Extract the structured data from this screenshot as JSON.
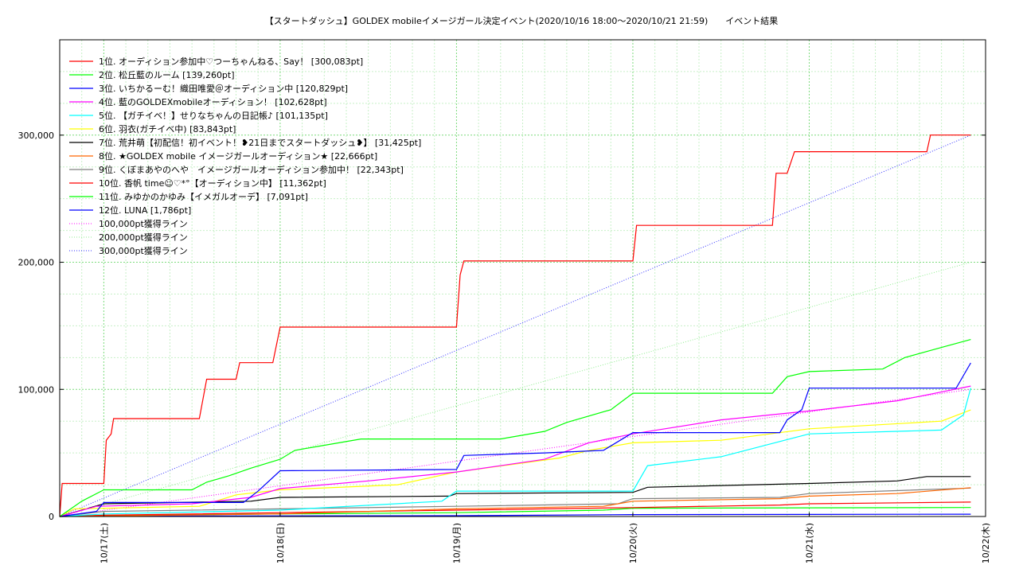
{
  "chart_data": {
    "type": "line",
    "title": "【スタートダッシュ】GOLDEX mobileイメージガール決定イベント(2020/10/16 18:00〜2020/10/21 21:59)　　イベント結果",
    "x_range": [
      "2020/10/16 18:00",
      "2020/10/22 00:00"
    ],
    "x_ticks": [
      {
        "t": "2020/10/17 00:00",
        "label": "10/17(土)"
      },
      {
        "t": "2020/10/18 00:00",
        "label": "10/18(日)"
      },
      {
        "t": "2020/10/19 00:00",
        "label": "10/19(月)"
      },
      {
        "t": "2020/10/20 00:00",
        "label": "10/20(火)"
      },
      {
        "t": "2020/10/21 00:00",
        "label": "10/21(水)"
      },
      {
        "t": "2020/10/22 00:00",
        "label": "10/22(木)"
      }
    ],
    "ylim": [
      0,
      375000
    ],
    "y_ticks": [
      {
        "v": 0,
        "label": "0"
      },
      {
        "v": 100000,
        "label": "100,000"
      },
      {
        "v": 200000,
        "label": "200,000"
      },
      {
        "v": 300000,
        "label": "300,000"
      }
    ],
    "grid": true,
    "legend_position": "top-left",
    "series": [
      {
        "name": "1位. オーディション参加中♡つーちゃんねる、Say！ [300,083pt]",
        "color": "#ff0000",
        "points": [
          [
            "2020/10/16 18:00",
            0
          ],
          [
            "2020/10/16 18:20",
            26000
          ],
          [
            "2020/10/17 00:00",
            26000
          ],
          [
            "2020/10/17 00:20",
            60000
          ],
          [
            "2020/10/17 01:00",
            65000
          ],
          [
            "2020/10/17 01:20",
            77000
          ],
          [
            "2020/10/17 13:00",
            77000
          ],
          [
            "2020/10/17 14:00",
            108000
          ],
          [
            "2020/10/17 18:00",
            108000
          ],
          [
            "2020/10/17 18:30",
            121000
          ],
          [
            "2020/10/17 23:00",
            121000
          ],
          [
            "2020/10/18 00:00",
            149000
          ],
          [
            "2020/10/19 00:00",
            149000
          ],
          [
            "2020/10/19 00:30",
            190000
          ],
          [
            "2020/10/19 01:00",
            201000
          ],
          [
            "2020/10/20 00:00",
            201000
          ],
          [
            "2020/10/20 00:30",
            229000
          ],
          [
            "2020/10/20 19:00",
            229000
          ],
          [
            "2020/10/20 19:30",
            270000
          ],
          [
            "2020/10/20 21:00",
            270000
          ],
          [
            "2020/10/20 22:00",
            287000
          ],
          [
            "2020/10/21 16:00",
            287000
          ],
          [
            "2020/10/21 16:30",
            300083
          ],
          [
            "2020/10/21 21:59",
            300083
          ]
        ]
      },
      {
        "name": "2位. 松丘藍のルーム [139,260pt]",
        "color": "#00ff00",
        "points": [
          [
            "2020/10/16 18:00",
            0
          ],
          [
            "2020/10/16 21:00",
            12000
          ],
          [
            "2020/10/17 00:00",
            21000
          ],
          [
            "2020/10/17 12:00",
            21000
          ],
          [
            "2020/10/17 14:00",
            27000
          ],
          [
            "2020/10/17 17:00",
            32000
          ],
          [
            "2020/10/17 20:00",
            38000
          ],
          [
            "2020/10/18 00:00",
            45000
          ],
          [
            "2020/10/18 02:00",
            52000
          ],
          [
            "2020/10/18 05:00",
            55000
          ],
          [
            "2020/10/18 11:00",
            61000
          ],
          [
            "2020/10/19 06:00",
            61000
          ],
          [
            "2020/10/19 12:00",
            67000
          ],
          [
            "2020/10/19 15:00",
            74000
          ],
          [
            "2020/10/19 21:00",
            84000
          ],
          [
            "2020/10/20 00:00",
            97000
          ],
          [
            "2020/10/20 19:00",
            97000
          ],
          [
            "2020/10/20 21:00",
            110000
          ],
          [
            "2020/10/21 00:00",
            114000
          ],
          [
            "2020/10/21 10:00",
            116000
          ],
          [
            "2020/10/21 13:00",
            125000
          ],
          [
            "2020/10/21 18:00",
            133000
          ],
          [
            "2020/10/21 21:59",
            139260
          ]
        ]
      },
      {
        "name": "3位. いちかるーむ！織田唯愛＠オーディション中 [120,829pt]",
        "color": "#0000ff",
        "points": [
          [
            "2020/10/16 18:00",
            0
          ],
          [
            "2020/10/16 23:00",
            4000
          ],
          [
            "2020/10/17 00:00",
            11000
          ],
          [
            "2020/10/17 19:00",
            11000
          ],
          [
            "2020/10/17 21:00",
            20000
          ],
          [
            "2020/10/18 00:00",
            36000
          ],
          [
            "2020/10/19 00:00",
            37000
          ],
          [
            "2020/10/19 01:00",
            48000
          ],
          [
            "2020/10/19 12:00",
            50000
          ],
          [
            "2020/10/19 20:00",
            52000
          ],
          [
            "2020/10/20 00:00",
            66000
          ],
          [
            "2020/10/20 20:00",
            66000
          ],
          [
            "2020/10/20 21:00",
            76000
          ],
          [
            "2020/10/20 23:00",
            84000
          ],
          [
            "2020/10/21 00:00",
            101000
          ],
          [
            "2020/10/21 20:00",
            101000
          ],
          [
            "2020/10/21 21:59",
            120829
          ]
        ]
      },
      {
        "name": "4位. 藍のGOLDEXmobileオーディション！ [102,628pt]",
        "color": "#ff00ff",
        "points": [
          [
            "2020/10/16 18:00",
            0
          ],
          [
            "2020/10/16 23:00",
            8000
          ],
          [
            "2020/10/17 12:00",
            10000
          ],
          [
            "2020/10/17 20:00",
            15000
          ],
          [
            "2020/10/18 00:00",
            22000
          ],
          [
            "2020/10/18 12:00",
            28000
          ],
          [
            "2020/10/19 00:00",
            35000
          ],
          [
            "2020/10/19 12:00",
            45000
          ],
          [
            "2020/10/19 18:00",
            58000
          ],
          [
            "2020/10/20 00:00",
            65000
          ],
          [
            "2020/10/20 12:00",
            76000
          ],
          [
            "2020/10/21 00:00",
            83000
          ],
          [
            "2020/10/21 12:00",
            91000
          ],
          [
            "2020/10/21 21:59",
            102628
          ]
        ]
      },
      {
        "name": "5位. 【ガチイベ！】せりなちゃんの日記帳♪ [101,135pt]",
        "color": "#00ffff",
        "points": [
          [
            "2020/10/16 18:00",
            0
          ],
          [
            "2020/10/17 00:00",
            2000
          ],
          [
            "2020/10/18 00:00",
            5000
          ],
          [
            "2020/10/18 22:00",
            12000
          ],
          [
            "2020/10/19 00:00",
            20000
          ],
          [
            "2020/10/20 00:00",
            20000
          ],
          [
            "2020/10/20 02:00",
            40000
          ],
          [
            "2020/10/20 12:00",
            47000
          ],
          [
            "2020/10/21 00:00",
            65000
          ],
          [
            "2020/10/21 18:00",
            68000
          ],
          [
            "2020/10/21 21:00",
            80000
          ],
          [
            "2020/10/21 21:59",
            101135
          ]
        ]
      },
      {
        "name": "6位. 羽衣(ガチイベ中) [83,843pt]",
        "color": "#ffff00",
        "points": [
          [
            "2020/10/16 18:00",
            0
          ],
          [
            "2020/10/16 20:00",
            6000
          ],
          [
            "2020/10/17 13:00",
            8000
          ],
          [
            "2020/10/17 18:00",
            17000
          ],
          [
            "2020/10/18 00:00",
            21000
          ],
          [
            "2020/10/18 16:00",
            25000
          ],
          [
            "2020/10/19 00:00",
            35000
          ],
          [
            "2020/10/19 14:00",
            46000
          ],
          [
            "2020/10/19 18:00",
            52000
          ],
          [
            "2020/10/20 00:00",
            58000
          ],
          [
            "2020/10/20 12:00",
            60000
          ],
          [
            "2020/10/21 00:00",
            69000
          ],
          [
            "2020/10/21 18:00",
            75000
          ],
          [
            "2020/10/21 21:59",
            83843
          ]
        ]
      },
      {
        "name": "7位. 荒井萌【初配信！初イベント！❥21日までスタートダッシュ❥】 [31,425pt]",
        "color": "#000000",
        "points": [
          [
            "2020/10/16 18:00",
            0
          ],
          [
            "2020/10/17 00:00",
            10000
          ],
          [
            "2020/10/17 20:00",
            12000
          ],
          [
            "2020/10/18 00:00",
            15000
          ],
          [
            "2020/10/18 23:00",
            16000
          ],
          [
            "2020/10/19 00:00",
            18000
          ],
          [
            "2020/10/20 00:00",
            19000
          ],
          [
            "2020/10/20 02:00",
            23000
          ],
          [
            "2020/10/21 00:00",
            26000
          ],
          [
            "2020/10/21 12:00",
            28000
          ],
          [
            "2020/10/21 16:00",
            31425
          ],
          [
            "2020/10/21 21:59",
            31425
          ]
        ]
      },
      {
        "name": "8位. ★GOLDEX mobile イメージガールオーディション★ [22,666pt]",
        "color": "#ff6600",
        "points": [
          [
            "2020/10/16 18:00",
            0
          ],
          [
            "2020/10/18 00:00",
            2000
          ],
          [
            "2020/10/18 12:00",
            4000
          ],
          [
            "2020/10/19 00:00",
            6000
          ],
          [
            "2020/10/19 20:00",
            8000
          ],
          [
            "2020/10/20 00:00",
            12000
          ],
          [
            "2020/10/20 20:00",
            14000
          ],
          [
            "2020/10/21 00:00",
            16000
          ],
          [
            "2020/10/21 12:00",
            18000
          ],
          [
            "2020/10/21 21:59",
            22666
          ]
        ]
      },
      {
        "name": "9位. くぼまあやのへや　イメージガールオーディション参加中！ [22,343pt]",
        "color": "#808080",
        "points": [
          [
            "2020/10/16 18:00",
            0
          ],
          [
            "2020/10/17 00:00",
            4000
          ],
          [
            "2020/10/18 00:00",
            6000
          ],
          [
            "2020/10/19 00:00",
            8000
          ],
          [
            "2020/10/19 22:00",
            10000
          ],
          [
            "2020/10/20 00:00",
            14000
          ],
          [
            "2020/10/20 20:00",
            15000
          ],
          [
            "2020/10/21 00:00",
            18000
          ],
          [
            "2020/10/21 21:59",
            22343
          ]
        ]
      },
      {
        "name": "10位. 香帆 time☺♡*°【オーディション中】 [11,362pt]",
        "color": "#ff0000",
        "points": [
          [
            "2020/10/16 18:00",
            0
          ],
          [
            "2020/10/17 00:00",
            1000
          ],
          [
            "2020/10/18 00:00",
            3000
          ],
          [
            "2020/10/19 00:00",
            5000
          ],
          [
            "2020/10/20 00:00",
            7000
          ],
          [
            "2020/10/20 20:00",
            9000
          ],
          [
            "2020/10/21 00:00",
            10000
          ],
          [
            "2020/10/21 21:59",
            11362
          ]
        ]
      },
      {
        "name": "11位. みゆかのかゆみ【イメガルオーデ】 [7,091pt]",
        "color": "#00ff00",
        "points": [
          [
            "2020/10/16 18:00",
            0
          ],
          [
            "2020/10/17 00:00",
            800
          ],
          [
            "2020/10/18 00:00",
            2000
          ],
          [
            "2020/10/19 00:00",
            3000
          ],
          [
            "2020/10/19 20:00",
            5000
          ],
          [
            "2020/10/20 00:00",
            6500
          ],
          [
            "2020/10/21 21:59",
            7091
          ]
        ]
      },
      {
        "name": "12位. LUNA [1,786pt]",
        "color": "#0000ff",
        "points": [
          [
            "2020/10/16 18:00",
            0
          ],
          [
            "2020/10/17 00:00",
            300
          ],
          [
            "2020/10/19 00:00",
            600
          ],
          [
            "2020/10/20 00:00",
            1500
          ],
          [
            "2020/10/21 21:59",
            1786
          ]
        ]
      }
    ],
    "reference_lines": [
      {
        "name": "100,000pt獲得ライン",
        "color": "#ff00ff",
        "end_value": 100000
      },
      {
        "name": "200,000pt獲得ライン",
        "color": "#90ee90",
        "end_value": 200000
      },
      {
        "name": "300,000pt獲得ライン",
        "color": "#3333ff",
        "end_value": 300000
      }
    ]
  }
}
